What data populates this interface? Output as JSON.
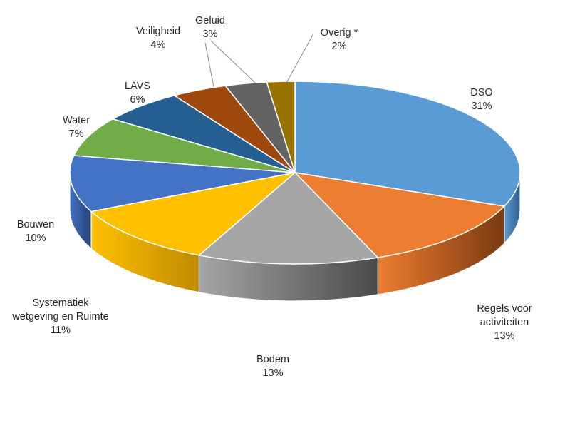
{
  "chart_data": {
    "type": "pie",
    "style": "3d-exploded-none",
    "title": "",
    "slices": [
      {
        "name": "DSO",
        "lines": [
          "DSO"
        ],
        "pct_label": "31%",
        "value": 31,
        "color": "#5B9BD5",
        "side": "#2E5E8C"
      },
      {
        "name": "Regels voor activiteiten",
        "lines": [
          "Regels voor",
          "activiteiten"
        ],
        "pct_label": "13%",
        "value": 13,
        "color": "#ED7D31",
        "side": "#7A3A12"
      },
      {
        "name": "Bodem",
        "lines": [
          "Bodem"
        ],
        "pct_label": "13%",
        "value": 13,
        "color": "#A5A5A5",
        "side": "#4A4A4A"
      },
      {
        "name": "Systematiek wetgeving en Ruimte",
        "lines": [
          "Systematiek",
          "wetgeving en Ruimte"
        ],
        "pct_label": "11%",
        "value": 11,
        "color": "#FFC000",
        "side": "#C08A00"
      },
      {
        "name": "Bouwen",
        "lines": [
          "Bouwen"
        ],
        "pct_label": "10%",
        "value": 10,
        "color": "#4472C4",
        "side": "#243F73"
      },
      {
        "name": "Water",
        "lines": [
          "Water"
        ],
        "pct_label": "7%",
        "value": 7,
        "color": "#70AD47",
        "side": "#3D6426"
      },
      {
        "name": "LAVS",
        "lines": [
          "LAVS"
        ],
        "pct_label": "6%",
        "value": 6,
        "color": "#255E91",
        "side": "#143552"
      },
      {
        "name": "Veiligheid",
        "lines": [
          "Veiligheid"
        ],
        "pct_label": "4%",
        "value": 4,
        "color": "#9E480E",
        "side": "#5A2807"
      },
      {
        "name": "Geluid",
        "lines": [
          "Geluid"
        ],
        "pct_label": "3%",
        "value": 3,
        "color": "#636363",
        "side": "#363636"
      },
      {
        "name": "Overig *",
        "lines": [
          "Overig *"
        ],
        "pct_label": "2%",
        "value": 2,
        "color": "#997300",
        "side": "#5A4400"
      }
    ],
    "start_angle_deg": 0,
    "direction": "clockwise",
    "legend": "none",
    "data_labels": "outside-with-leader-lines"
  }
}
